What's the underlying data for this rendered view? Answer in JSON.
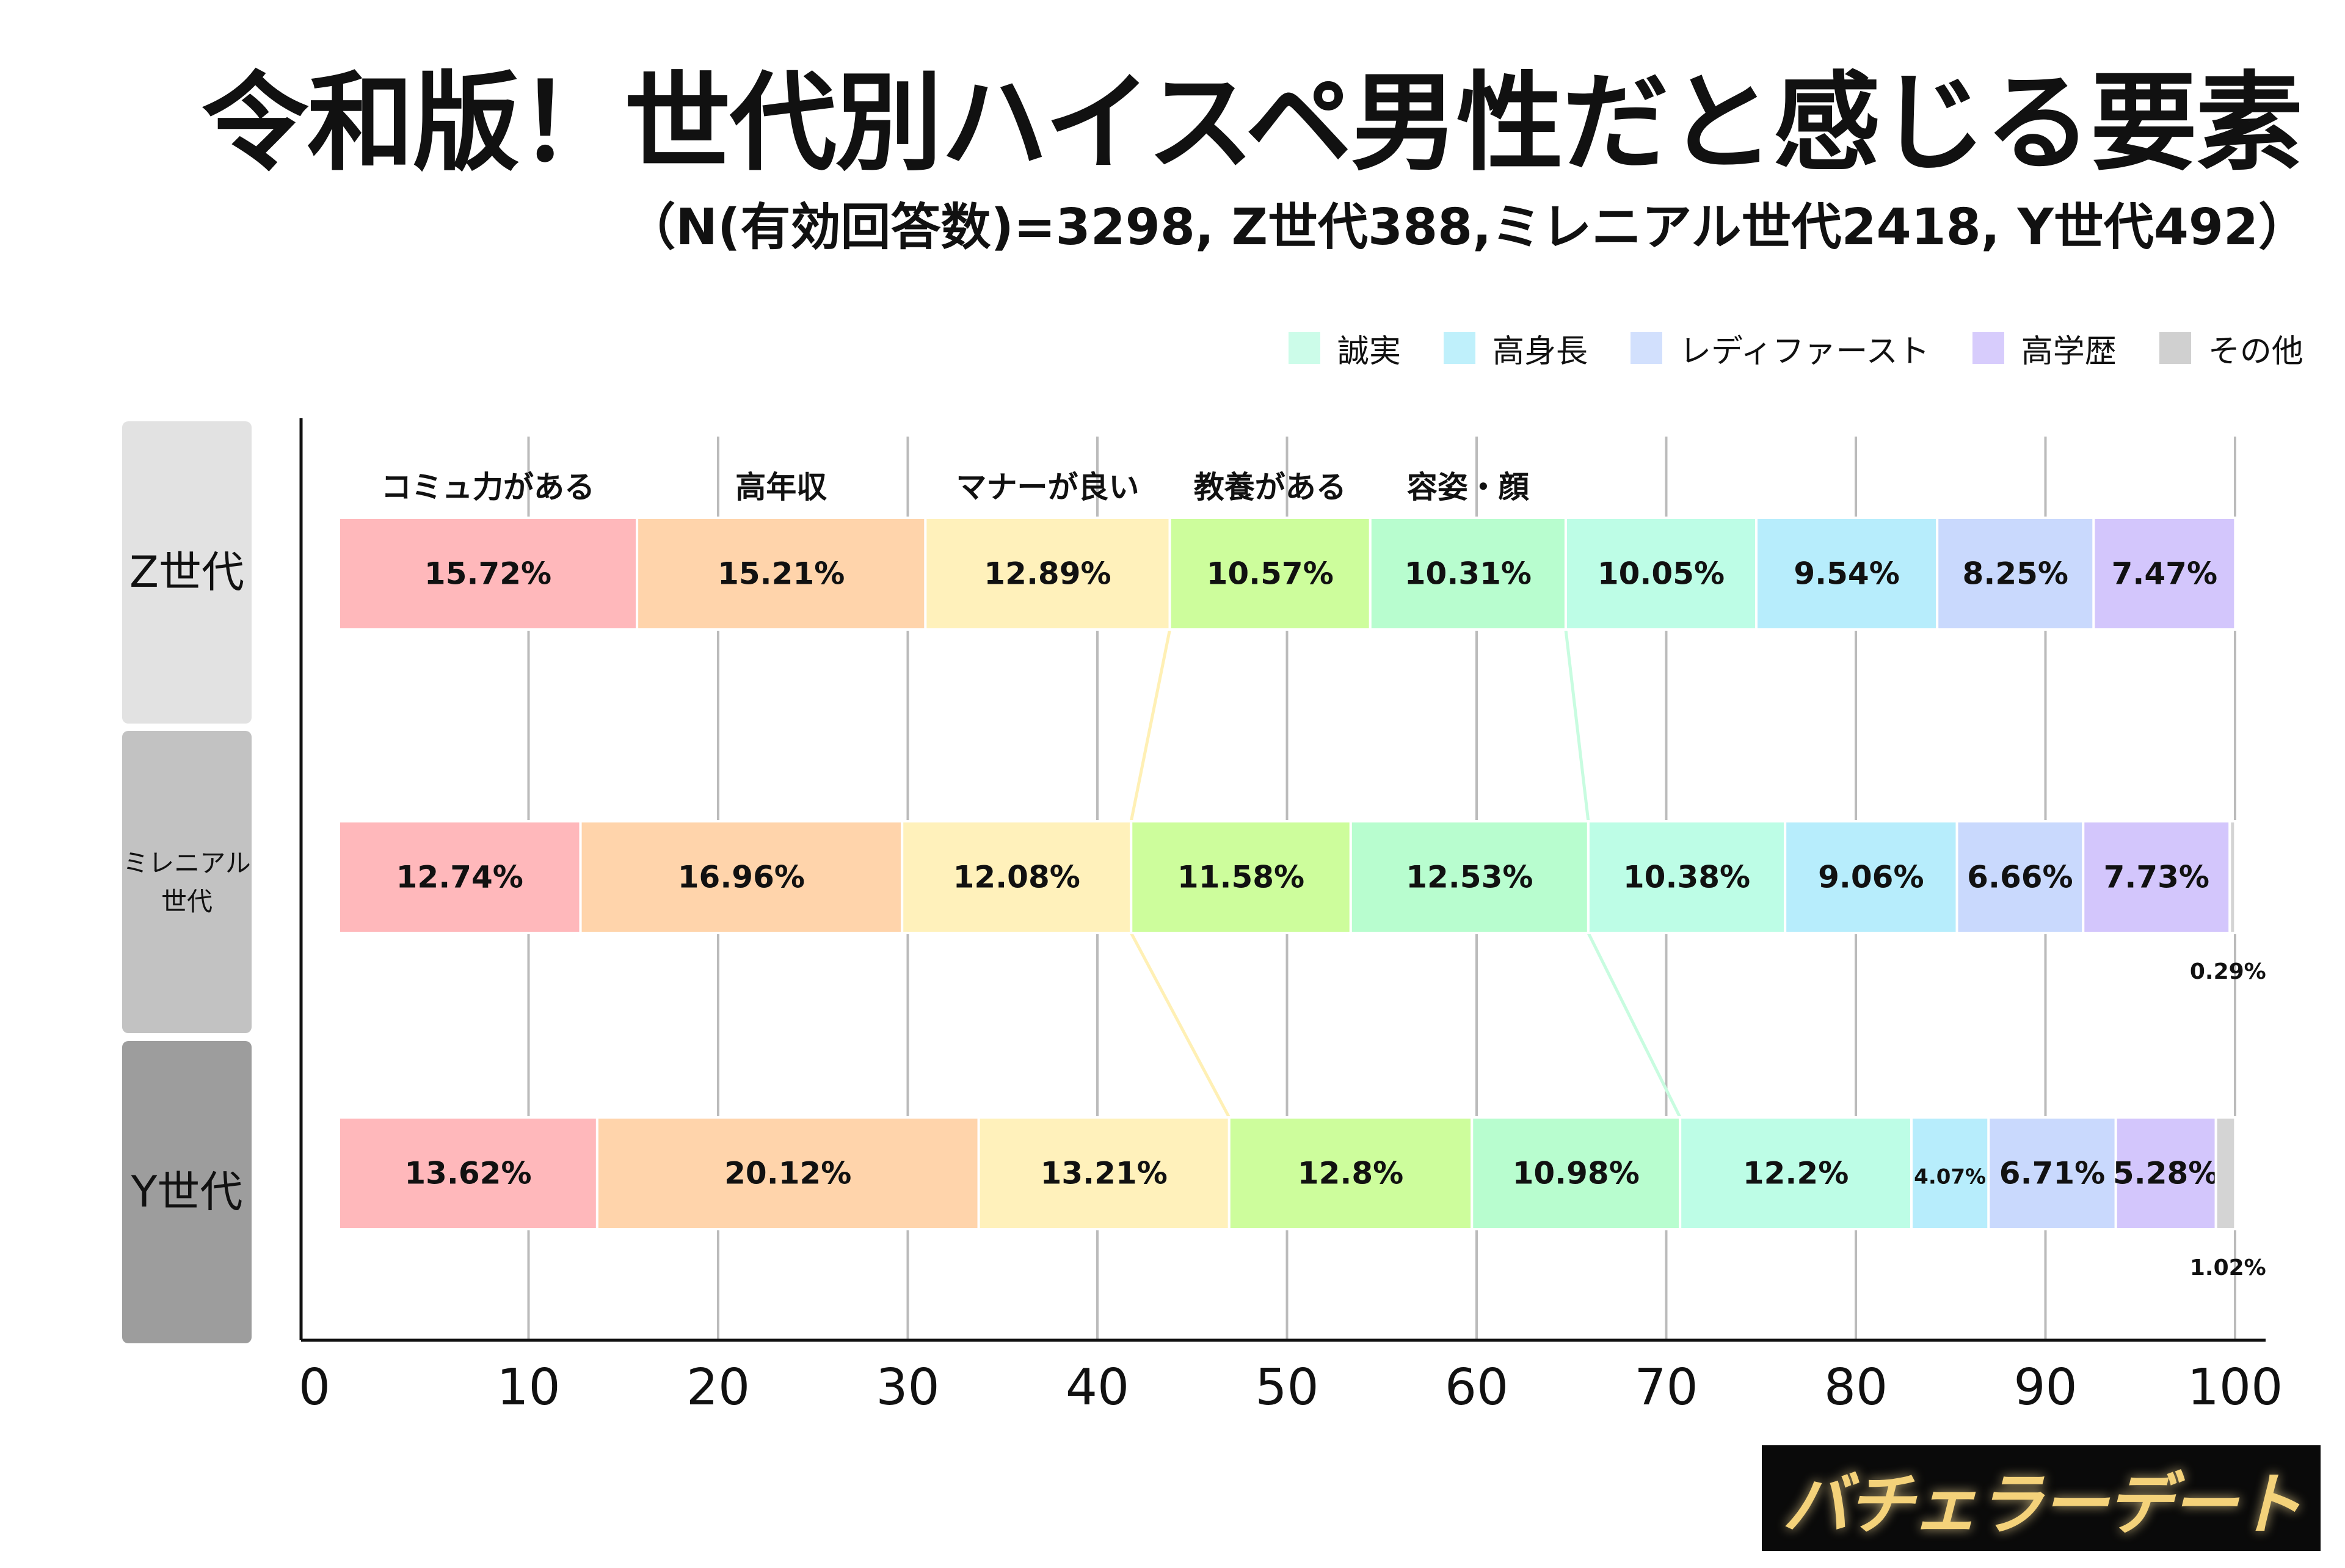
{
  "title": "令和版！世代別ハイスペ男性だと感じる要素",
  "subtitle": "（N(有効回答数)=3298, Z世代388,ミレニアル世代2418, Y世代492）",
  "legend": [
    {
      "label": "誠実",
      "color": "#ccfce9"
    },
    {
      "label": "高身長",
      "color": "#bff0fb"
    },
    {
      "label": "レディファースト",
      "color": "#d2e0fd"
    },
    {
      "label": "高学歴",
      "color": "#d7ccfc"
    },
    {
      "label": "その他",
      "color": "#d0d0d0"
    }
  ],
  "generations": [
    {
      "label": "Z世代",
      "bg": "#e2e2e2"
    },
    {
      "label": "ミレニアル\n世代",
      "bg": "#c2c2c2"
    },
    {
      "label": "Y世代",
      "bg": "#9d9d9d"
    }
  ],
  "logo": "バチェラーデート",
  "chart_data": {
    "type": "bar",
    "orientation": "horizontal",
    "stacked": true,
    "title": "令和版！世代別ハイスペ男性だと感じる要素",
    "xlim": [
      0,
      100
    ],
    "xticks": [
      "0",
      "10",
      "20",
      "30",
      "40",
      "50",
      "60",
      "70",
      "80",
      "90",
      "100"
    ],
    "categories": [
      "Z世代",
      "ミレニアル世代",
      "Y世代"
    ],
    "top_labels": [
      "コミュ力がある",
      "高年収",
      "マナーが良い",
      "教養がある",
      "容姿・顔"
    ],
    "series": [
      {
        "name": "コミュ力がある",
        "color": "#ffb8bb",
        "values": [
          15.72,
          12.74,
          13.62
        ],
        "labels": [
          "15.72%",
          "12.74%",
          "13.62%"
        ]
      },
      {
        "name": "高年収",
        "color": "#ffd4ab",
        "values": [
          15.21,
          16.96,
          20.12
        ],
        "labels": [
          "15.21%",
          "16.96%",
          "20.12%"
        ]
      },
      {
        "name": "マナーが良い",
        "color": "#fff1bb",
        "values": [
          12.89,
          12.08,
          13.21
        ],
        "labels": [
          "12.89%",
          "12.08%",
          "13.21%"
        ]
      },
      {
        "name": "教養がある",
        "color": "#cdfd9c",
        "values": [
          10.57,
          11.58,
          12.8
        ],
        "labels": [
          "10.57%",
          "11.58%",
          "12.8%"
        ]
      },
      {
        "name": "容姿・顔",
        "color": "#b8fdcf",
        "values": [
          10.31,
          12.53,
          10.98
        ],
        "labels": [
          "10.31%",
          "12.53%",
          "10.98%"
        ]
      },
      {
        "name": "誠実",
        "color": "#bdfde6",
        "values": [
          10.05,
          10.38,
          12.2
        ],
        "labels": [
          "10.05%",
          "10.38%",
          "12.2%"
        ]
      },
      {
        "name": "高身長",
        "color": "#b7edfc",
        "values": [
          9.54,
          9.06,
          4.07
        ],
        "labels": [
          "9.54%",
          "9.06%",
          "4.07%"
        ]
      },
      {
        "name": "レディファースト",
        "color": "#c9d9fd",
        "values": [
          8.25,
          6.66,
          6.71
        ],
        "labels": [
          "8.25%",
          "6.66%",
          "6.71%"
        ]
      },
      {
        "name": "高学歴",
        "color": "#d3c6fc",
        "values": [
          7.47,
          7.73,
          5.28
        ],
        "labels": [
          "7.47%",
          "7.73%",
          "5.28%"
        ]
      },
      {
        "name": "その他",
        "color": "#d4d4d4",
        "values": [
          0,
          0.29,
          1.02
        ],
        "labels": [
          "",
          "0.29%",
          "1.02%"
        ]
      }
    ]
  }
}
